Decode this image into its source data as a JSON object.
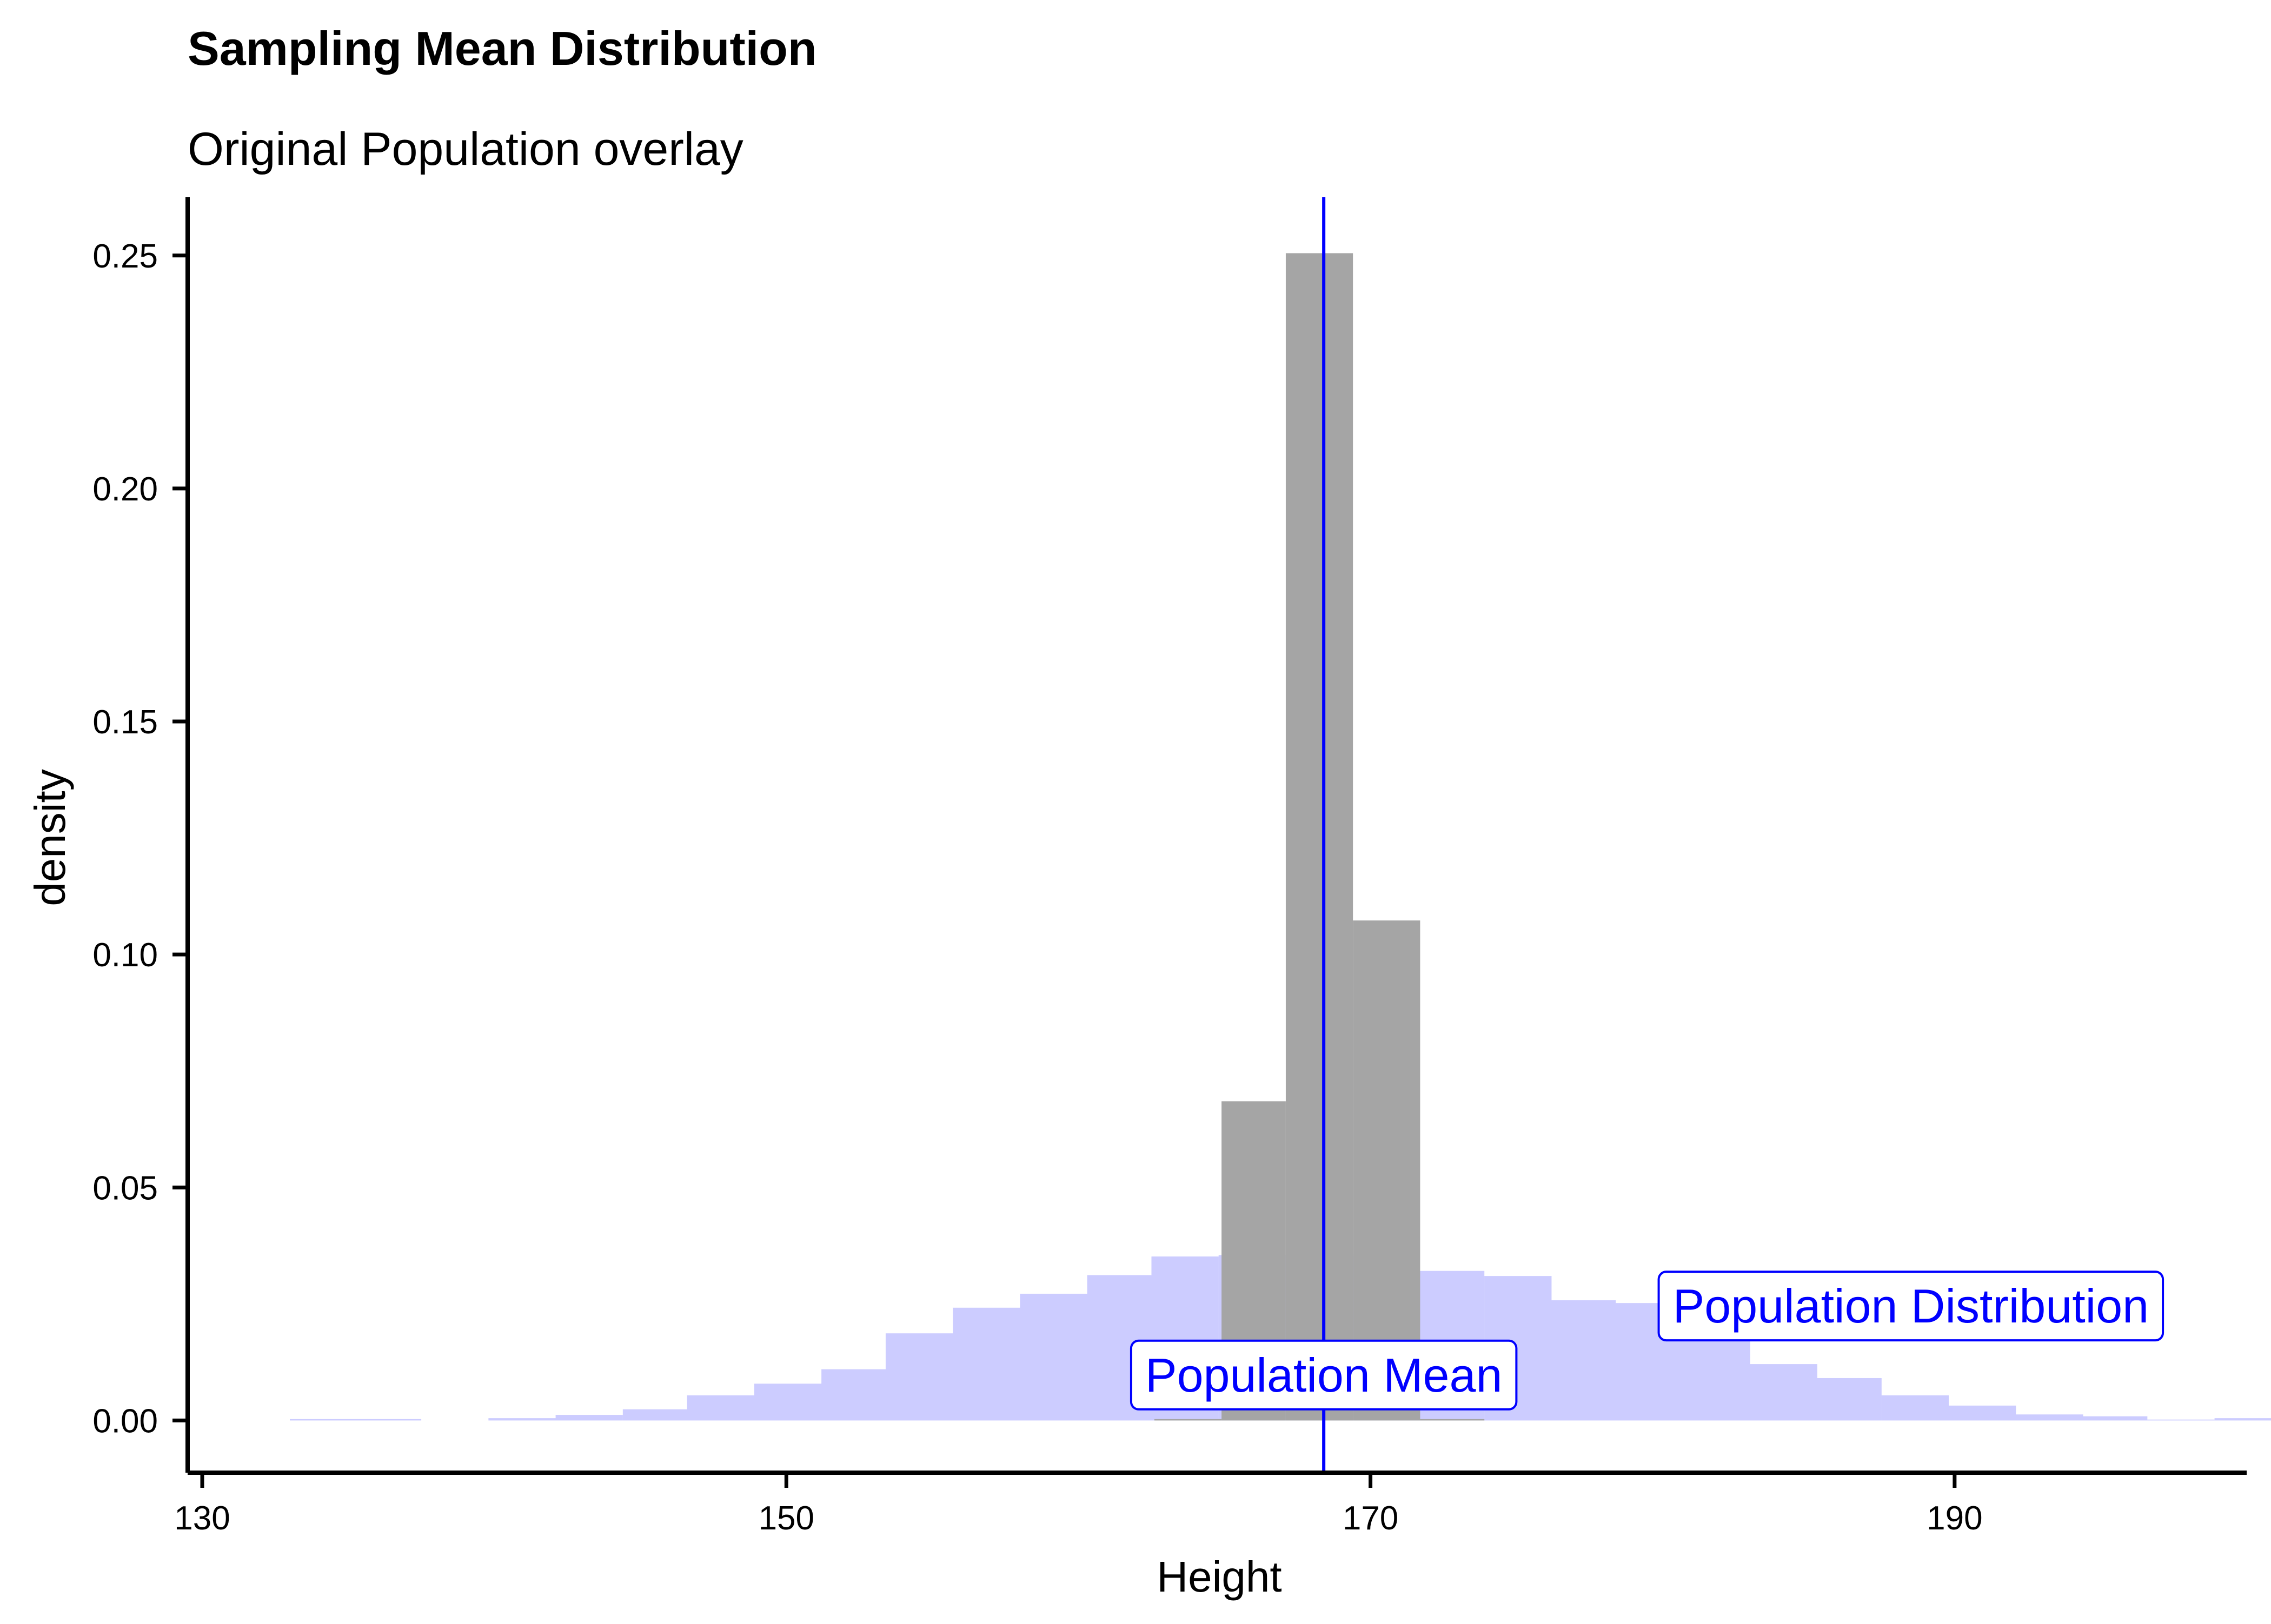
{
  "chart_data": {
    "type": "bar",
    "title": "Sampling Mean Distribution",
    "subtitle": "Original Population overlay",
    "xlabel": "Height",
    "ylabel": "density",
    "xlim": [
      129.5,
      200
    ],
    "ylim": [
      -0.0112,
      0.2625
    ],
    "x_ticks": [
      130,
      150,
      170,
      190
    ],
    "y_ticks": [
      0.0,
      0.05,
      0.1,
      0.15,
      0.2,
      0.25
    ],
    "y_tick_labels": [
      "0.00",
      "0.05",
      "0.10",
      "0.15",
      "0.20",
      "0.25"
    ],
    "grid": false,
    "legend": "none",
    "series": [
      {
        "kind": "histogram",
        "color": "#a5a5a5",
        "opacity": 1,
        "bins": [
          {
            "x0": 162.6,
            "x1": 164.9,
            "y": 0.0003
          },
          {
            "x0": 164.9,
            "x1": 167.1,
            "y": 0.0685
          },
          {
            "x0": 167.1,
            "x1": 169.4,
            "y": 0.2505
          },
          {
            "x0": 169.4,
            "x1": 171.7,
            "y": 0.1073
          },
          {
            "x0": 171.7,
            "x1": 173.9,
            "y": 0.0003
          }
        ]
      },
      {
        "kind": "histogram",
        "color": "#0000ff",
        "opacity": 0.2,
        "bins": [
          {
            "x0": 133.0,
            "x1": 135.3,
            "y": 0.0003
          },
          {
            "x0": 135.3,
            "x1": 137.5,
            "y": 0.0003
          },
          {
            "x0": 137.5,
            "x1": 139.8,
            "y": 0.0
          },
          {
            "x0": 139.8,
            "x1": 142.1,
            "y": 0.0005
          },
          {
            "x0": 142.1,
            "x1": 144.4,
            "y": 0.0012
          },
          {
            "x0": 144.4,
            "x1": 146.6,
            "y": 0.0024
          },
          {
            "x0": 146.6,
            "x1": 148.9,
            "y": 0.0054
          },
          {
            "x0": 148.9,
            "x1": 151.2,
            "y": 0.0079
          },
          {
            "x0": 151.2,
            "x1": 153.4,
            "y": 0.011
          },
          {
            "x0": 153.4,
            "x1": 155.7,
            "y": 0.0187
          },
          {
            "x0": 155.7,
            "x1": 158.0,
            "y": 0.0242
          },
          {
            "x0": 158.0,
            "x1": 160.3,
            "y": 0.0272
          },
          {
            "x0": 160.3,
            "x1": 162.5,
            "y": 0.0312
          },
          {
            "x0": 162.5,
            "x1": 164.8,
            "y": 0.0352
          },
          {
            "x0": 164.8,
            "x1": 167.1,
            "y": 0.0355
          },
          {
            "x0": 167.1,
            "x1": 169.4,
            "y": 0.0354
          },
          {
            "x0": 169.4,
            "x1": 171.6,
            "y": 0.0357
          },
          {
            "x0": 171.6,
            "x1": 173.9,
            "y": 0.0321
          },
          {
            "x0": 173.9,
            "x1": 176.2,
            "y": 0.031
          },
          {
            "x0": 176.2,
            "x1": 178.4,
            "y": 0.0258
          },
          {
            "x0": 178.4,
            "x1": 180.7,
            "y": 0.0252
          },
          {
            "x0": 180.7,
            "x1": 183.0,
            "y": 0.0193
          },
          {
            "x0": 183.0,
            "x1": 185.3,
            "y": 0.0121
          },
          {
            "x0": 185.3,
            "x1": 187.5,
            "y": 0.0091
          },
          {
            "x0": 187.5,
            "x1": 189.8,
            "y": 0.0054
          },
          {
            "x0": 189.8,
            "x1": 192.1,
            "y": 0.0032
          },
          {
            "x0": 192.1,
            "x1": 194.4,
            "y": 0.0013
          },
          {
            "x0": 194.4,
            "x1": 196.6,
            "y": 0.0009
          },
          {
            "x0": 196.6,
            "x1": 198.9,
            "y": 0.0002
          },
          {
            "x0": 198.9,
            "x1": 201.2,
            "y": 0.0005
          }
        ]
      }
    ],
    "vline": {
      "x": 168.4,
      "color": "#0000ff"
    },
    "annotations": [
      {
        "text": "Population Mean",
        "x": 168.4,
        "y": 0.0097,
        "color": "#0000ff"
      },
      {
        "text": "Population Distribution",
        "x": 188.5,
        "y": 0.0245,
        "color": "#0000ff"
      }
    ]
  }
}
